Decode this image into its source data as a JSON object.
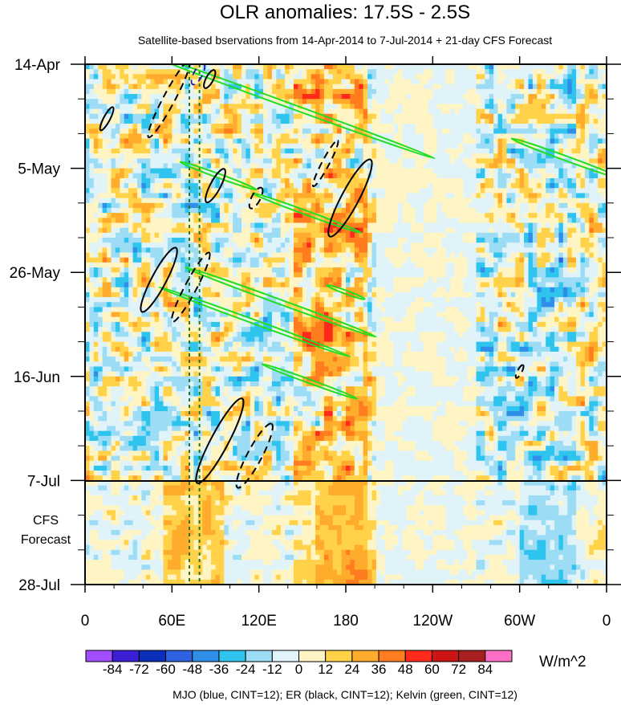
{
  "chart_data": {
    "type": "heatmap",
    "title": "OLR anomalies: 17.5S - 2.5S",
    "subtitle": "Satellite-based bservations from 14-Apr-2014 to 7-Jul-2014 + 21-day CFS Forecast",
    "x_axis": {
      "label": "",
      "tick_labels": [
        "0",
        "60E",
        "120E",
        "180",
        "120W",
        "60W",
        "0"
      ],
      "range_deg_east": [
        0,
        360
      ]
    },
    "y_axis": {
      "label": "",
      "tick_labels": [
        "14-Apr",
        "5-May",
        "26-May",
        "16-Jun",
        "7-Jul",
        "28-Jul"
      ],
      "range_days_from_start": [
        0,
        105
      ],
      "observation_end_day": 84
    },
    "forecast_label_lines": [
      "CFS",
      "Forecast"
    ],
    "colorbar": {
      "units": "W/m^2",
      "levels": [
        -84,
        -72,
        -60,
        -48,
        -36,
        -24,
        -12,
        0,
        12,
        24,
        36,
        48,
        60,
        72,
        84
      ],
      "level_labels": [
        "-84",
        "-72",
        "-60",
        "-48",
        "-36",
        "-24",
        "-12",
        "0",
        "12",
        "24",
        "36",
        "48",
        "60",
        "72",
        "84"
      ],
      "colors": [
        "#a24dff",
        "#3b1fd6",
        "#0b2fb8",
        "#2d62e0",
        "#2f8ee8",
        "#2ec4ee",
        "#9ddcf5",
        "#dff3f8",
        "#fff5c4",
        "#ffd24a",
        "#ffac2c",
        "#ff7c1f",
        "#ff2a1a",
        "#cc1414",
        "#a81f1f",
        "#ff6ec7"
      ]
    },
    "footnote": "MJO (blue, CINT=12); ER (black, CINT=12); Kelvin (green, CINT=12)",
    "colors": {
      "mjo": "#1a1aaa",
      "er": "#000000",
      "kelvin": "#22dd22",
      "reference_line": "#227722"
    },
    "reference_lines_deg_east": [
      72,
      79
    ],
    "er_contours_solid": [
      {
        "lon": 15,
        "day": 11,
        "a_deg": 9,
        "b_deg": 2.2
      },
      {
        "lon": 86,
        "day": 3,
        "a_deg": 7,
        "b_deg": 2.5
      },
      {
        "lon": 90,
        "day": 24.5,
        "a_deg": 13,
        "b_deg": 3.5
      },
      {
        "lon": 183,
        "day": 27,
        "a_deg": 30,
        "b_deg": 6
      },
      {
        "lon": 51,
        "day": 43.5,
        "a_deg": 25,
        "b_deg": 5
      },
      {
        "lon": 93,
        "day": 76,
        "a_deg": 33,
        "b_deg": 6
      }
    ],
    "er_contours_dashed": [
      {
        "lon": 58,
        "day": 7,
        "a_deg": 30,
        "b_deg": 4
      },
      {
        "lon": 118,
        "day": 27,
        "a_deg": 8,
        "b_deg": 3
      },
      {
        "lon": 166,
        "day": 20,
        "a_deg": 18,
        "b_deg": 2.5
      },
      {
        "lon": 73,
        "day": 45,
        "a_deg": 27,
        "b_deg": 4
      },
      {
        "lon": 117,
        "day": 79,
        "a_deg": 25,
        "b_deg": 5
      },
      {
        "lon": 300,
        "day": 62,
        "a_deg": 5,
        "b_deg": 1.5
      }
    ],
    "mjo_contours": [
      {
        "lon": 78,
        "day": 2,
        "a_deg": 8,
        "b_deg": 3
      }
    ],
    "kelvin_contours": [
      {
        "lon": 138,
        "day": 8,
        "a_deg": 110,
        "b_deg": 1.6
      },
      {
        "lon": 332,
        "day": 19,
        "a_deg": 40,
        "b_deg": 1.6
      },
      {
        "lon": 92,
        "day": 22.5,
        "a_deg": 28,
        "b_deg": 1.4
      },
      {
        "lon": 153,
        "day": 30,
        "a_deg": 40,
        "b_deg": 1.4
      },
      {
        "lon": 135,
        "day": 48,
        "a_deg": 70,
        "b_deg": 1.6
      },
      {
        "lon": 117,
        "day": 52,
        "a_deg": 70,
        "b_deg": 1.4
      },
      {
        "lon": 155,
        "day": 64,
        "a_deg": 35,
        "b_deg": 1.3
      },
      {
        "lon": 180,
        "day": 46,
        "a_deg": 14,
        "b_deg": 1.2
      }
    ]
  }
}
